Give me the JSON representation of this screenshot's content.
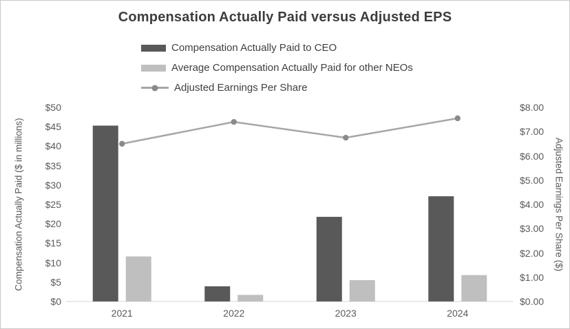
{
  "title": "Compensation Actually Paid versus Adjusted EPS",
  "chart_data": {
    "type": "bar",
    "title": "Compensation Actually Paid versus Adjusted EPS",
    "categories": [
      "2021",
      "2022",
      "2023",
      "2024"
    ],
    "series": [
      {
        "name": "Compensation Actually Paid to CEO",
        "type": "bar",
        "axis": "left",
        "color": "#595959",
        "values": [
          45.3,
          3.9,
          21.8,
          27.1
        ]
      },
      {
        "name": "Average Compensation Actually Paid for other NEOs",
        "type": "bar",
        "axis": "left",
        "color": "#bfbfbf",
        "values": [
          11.6,
          1.7,
          5.5,
          6.8
        ]
      },
      {
        "name": "Adjusted Earnings Per Share",
        "type": "line",
        "axis": "right",
        "color": "#a6a6a6",
        "marker_color": "#8a8a8a",
        "values": [
          6.5,
          7.4,
          6.75,
          7.55
        ]
      }
    ],
    "left_axis": {
      "label": "Compensation Actually Paid ($ in millions)",
      "min": 0,
      "max": 50,
      "step": 5,
      "ticks": [
        "$0",
        "$5",
        "$10",
        "$15",
        "$20",
        "$25",
        "$30",
        "$35",
        "$40",
        "$45",
        "$50"
      ]
    },
    "right_axis": {
      "label": "Adjusted Earnings Per Share ($)",
      "min": 0,
      "max": 8,
      "step": 1,
      "ticks": [
        "$0.00",
        "$1.00",
        "$2.00",
        "$3.00",
        "$4.00",
        "$5.00",
        "$6.00",
        "$7.00",
        "$8.00"
      ]
    },
    "gridlines": false,
    "legend_position": "top-left-of-plot",
    "axis_line_color": "#d6d6d6"
  }
}
